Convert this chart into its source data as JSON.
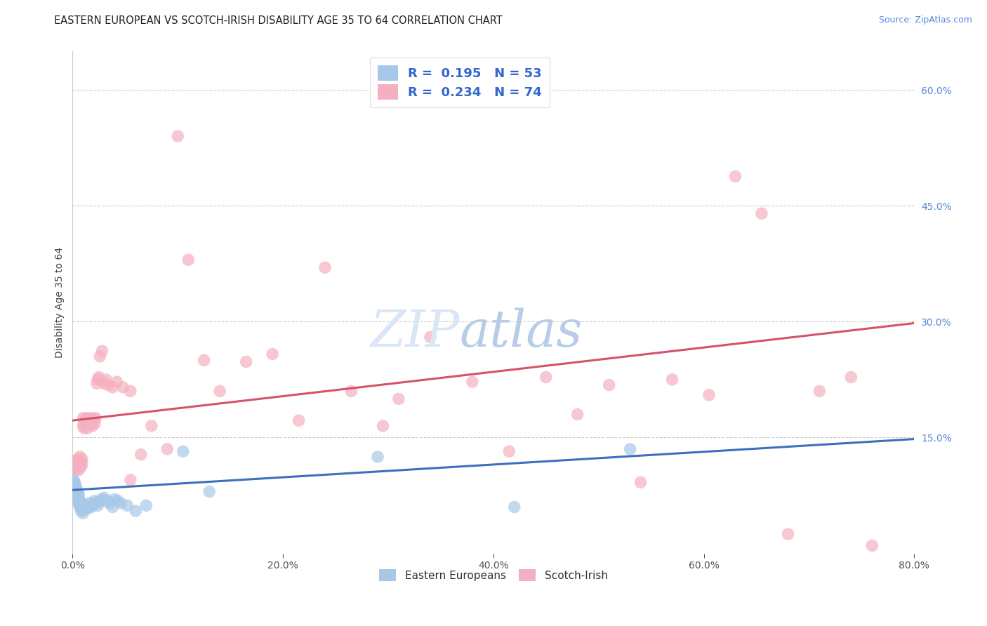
{
  "title": "EASTERN EUROPEAN VS SCOTCH-IRISH DISABILITY AGE 35 TO 64 CORRELATION CHART",
  "source": "Source: ZipAtlas.com",
  "ylabel": "Disability Age 35 to 64",
  "xlim": [
    0.0,
    0.8
  ],
  "ylim": [
    0.0,
    0.65
  ],
  "yticks": [
    0.15,
    0.3,
    0.45,
    0.6
  ],
  "ytick_labels": [
    "15.0%",
    "30.0%",
    "45.0%",
    "60.0%"
  ],
  "xticks": [
    0.0,
    0.2,
    0.4,
    0.6,
    0.8
  ],
  "xtick_labels": [
    "0.0%",
    "20.0%",
    "40.0%",
    "60.0%",
    "80.0%"
  ],
  "title_fontsize": 10.5,
  "source_fontsize": 9,
  "axis_label_fontsize": 10,
  "tick_fontsize": 10,
  "background_color": "#ffffff",
  "grid_color": "#cccccc",
  "blue_scatter_color": "#a8c8e8",
  "pink_scatter_color": "#f5b0c0",
  "blue_line_color": "#3d6fbf",
  "pink_line_color": "#d9506a",
  "r_blue": "0.195",
  "n_blue": "53",
  "r_pink": "0.234",
  "n_pink": "74",
  "legend_label_blue": "Eastern Europeans",
  "legend_label_pink": "Scotch-Irish",
  "blue_x": [
    0.001,
    0.001,
    0.002,
    0.002,
    0.002,
    0.003,
    0.003,
    0.003,
    0.004,
    0.004,
    0.004,
    0.005,
    0.005,
    0.005,
    0.006,
    0.006,
    0.006,
    0.007,
    0.007,
    0.008,
    0.008,
    0.009,
    0.009,
    0.01,
    0.01,
    0.011,
    0.012,
    0.013,
    0.014,
    0.015,
    0.016,
    0.018,
    0.019,
    0.021,
    0.022,
    0.024,
    0.026,
    0.028,
    0.03,
    0.033,
    0.035,
    0.038,
    0.04,
    0.043,
    0.046,
    0.052,
    0.06,
    0.07,
    0.105,
    0.13,
    0.29,
    0.42,
    0.53
  ],
  "blue_y": [
    0.09,
    0.095,
    0.08,
    0.085,
    0.092,
    0.075,
    0.082,
    0.088,
    0.072,
    0.078,
    0.083,
    0.068,
    0.075,
    0.08,
    0.063,
    0.07,
    0.076,
    0.06,
    0.068,
    0.055,
    0.063,
    0.058,
    0.065,
    0.052,
    0.06,
    0.057,
    0.06,
    0.062,
    0.058,
    0.06,
    0.065,
    0.06,
    0.062,
    0.068,
    0.065,
    0.062,
    0.068,
    0.07,
    0.072,
    0.068,
    0.065,
    0.06,
    0.07,
    0.068,
    0.065,
    0.062,
    0.055,
    0.062,
    0.132,
    0.08,
    0.125,
    0.06,
    0.135
  ],
  "pink_x": [
    0.001,
    0.002,
    0.002,
    0.003,
    0.003,
    0.004,
    0.004,
    0.005,
    0.005,
    0.006,
    0.006,
    0.007,
    0.007,
    0.008,
    0.008,
    0.009,
    0.009,
    0.01,
    0.01,
    0.011,
    0.011,
    0.012,
    0.013,
    0.014,
    0.015,
    0.016,
    0.017,
    0.018,
    0.019,
    0.02,
    0.021,
    0.022,
    0.023,
    0.024,
    0.025,
    0.026,
    0.028,
    0.03,
    0.032,
    0.034,
    0.038,
    0.042,
    0.048,
    0.055,
    0.065,
    0.075,
    0.09,
    0.1,
    0.11,
    0.125,
    0.14,
    0.165,
    0.19,
    0.215,
    0.24,
    0.265,
    0.295,
    0.34,
    0.38,
    0.415,
    0.45,
    0.48,
    0.51,
    0.54,
    0.57,
    0.605,
    0.63,
    0.655,
    0.68,
    0.71,
    0.74,
    0.76,
    0.31,
    0.055
  ],
  "pink_y": [
    0.11,
    0.115,
    0.12,
    0.108,
    0.118,
    0.112,
    0.12,
    0.115,
    0.122,
    0.108,
    0.115,
    0.118,
    0.125,
    0.112,
    0.12,
    0.115,
    0.122,
    0.165,
    0.175,
    0.162,
    0.17,
    0.168,
    0.175,
    0.162,
    0.17,
    0.175,
    0.168,
    0.172,
    0.165,
    0.175,
    0.168,
    0.175,
    0.22,
    0.225,
    0.228,
    0.255,
    0.262,
    0.22,
    0.225,
    0.218,
    0.215,
    0.222,
    0.215,
    0.21,
    0.128,
    0.165,
    0.135,
    0.54,
    0.38,
    0.25,
    0.21,
    0.248,
    0.258,
    0.172,
    0.37,
    0.21,
    0.165,
    0.28,
    0.222,
    0.132,
    0.228,
    0.18,
    0.218,
    0.092,
    0.225,
    0.205,
    0.488,
    0.44,
    0.025,
    0.21,
    0.228,
    0.01,
    0.2,
    0.095
  ]
}
